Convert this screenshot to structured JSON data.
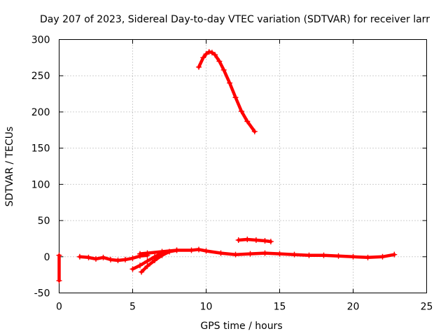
{
  "chart_data": {
    "type": "scatter",
    "title": "Day 207 of 2023, Sidereal Day-to-day VTEC variation (SDTVAR) for receiver larr",
    "xlabel": "GPS time / hours",
    "ylabel": "SDTVAR / TECUs",
    "xlim": [
      0,
      25
    ],
    "ylim": [
      -50,
      300
    ],
    "x_ticks": [
      "0",
      "5",
      "10",
      "15",
      "20",
      "25"
    ],
    "y_ticks": [
      "-50",
      "0",
      "50",
      "100",
      "150",
      "200",
      "250",
      "300"
    ],
    "grid": true,
    "legend": "none",
    "series_color": "#ff0000",
    "series": [
      {
        "x": [
          9.5,
          9.8,
          10.0,
          10.2,
          10.4,
          10.6,
          10.9,
          11.2,
          11.6,
          12.0,
          12.4,
          12.8,
          13.3
        ],
        "y": [
          262,
          275,
          280,
          283,
          282,
          279,
          270,
          258,
          240,
          220,
          201,
          187,
          173
        ]
      },
      {
        "x": [
          1.4,
          2.0,
          2.5,
          3.0,
          3.5,
          4.0,
          4.5,
          5.0,
          5.5,
          6.0
        ],
        "y": [
          0,
          -1,
          -3,
          -1,
          -4,
          -5,
          -4,
          -2,
          1,
          2
        ]
      },
      {
        "x": [
          5.0,
          5.5,
          6.0,
          6.5,
          7.0
        ],
        "y": [
          -17,
          -12,
          -6,
          0,
          5
        ]
      },
      {
        "x": [
          5.6,
          6.0,
          6.5,
          7.0,
          7.5,
          8.0
        ],
        "y": [
          -21,
          -13,
          -5,
          2,
          7,
          9
        ]
      },
      {
        "x": [
          5.5,
          6.0,
          7.0,
          8.0,
          9.0,
          9.5,
          10.0,
          11.0,
          12.0,
          13.0,
          14.0,
          15.0,
          16.0,
          17.0,
          18.0,
          19.0,
          20.0,
          21.0,
          22.0,
          22.8
        ],
        "y": [
          4,
          5,
          7,
          9,
          9,
          10,
          8,
          5,
          3,
          4,
          5,
          4,
          3,
          2,
          2,
          1,
          0,
          -1,
          0,
          3
        ]
      },
      {
        "x": [
          12.2,
          12.8,
          13.4,
          14.0,
          14.4
        ],
        "y": [
          23,
          24,
          23,
          22,
          21
        ]
      },
      {
        "x": [
          0.0,
          0.0
        ],
        "y": [
          2,
          -33
        ]
      }
    ]
  }
}
